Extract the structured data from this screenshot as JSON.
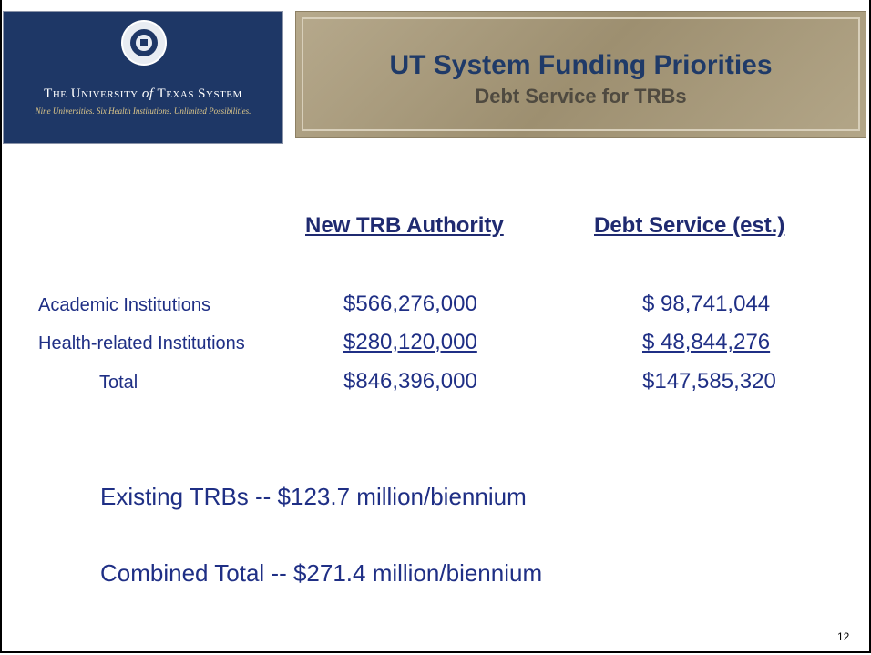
{
  "header": {
    "logo": {
      "name": [
        "The University",
        "of",
        "Texas System"
      ],
      "tagline": "Nine Universities. Six Health Institutions. Unlimited Possibilities."
    },
    "title": "UT System Funding Priorities",
    "subtitle": "Debt Service for TRBs"
  },
  "table": {
    "columns": [
      "New TRB Authority",
      "Debt Service (est.)"
    ],
    "rows": [
      [
        "Academic Institutions",
        "$566,276,000",
        "$ 98,741,044"
      ],
      [
        "Health-related Institutions",
        "$280,120,000",
        "$ 48,844,276"
      ],
      [
        "Total",
        "$846,396,000",
        "$147,585,320"
      ]
    ]
  },
  "summary": [
    "Existing TRBs -- $123.7 million/biennium",
    "Combined Total -- $271.4 million/biennium"
  ],
  "page_number": "12"
}
